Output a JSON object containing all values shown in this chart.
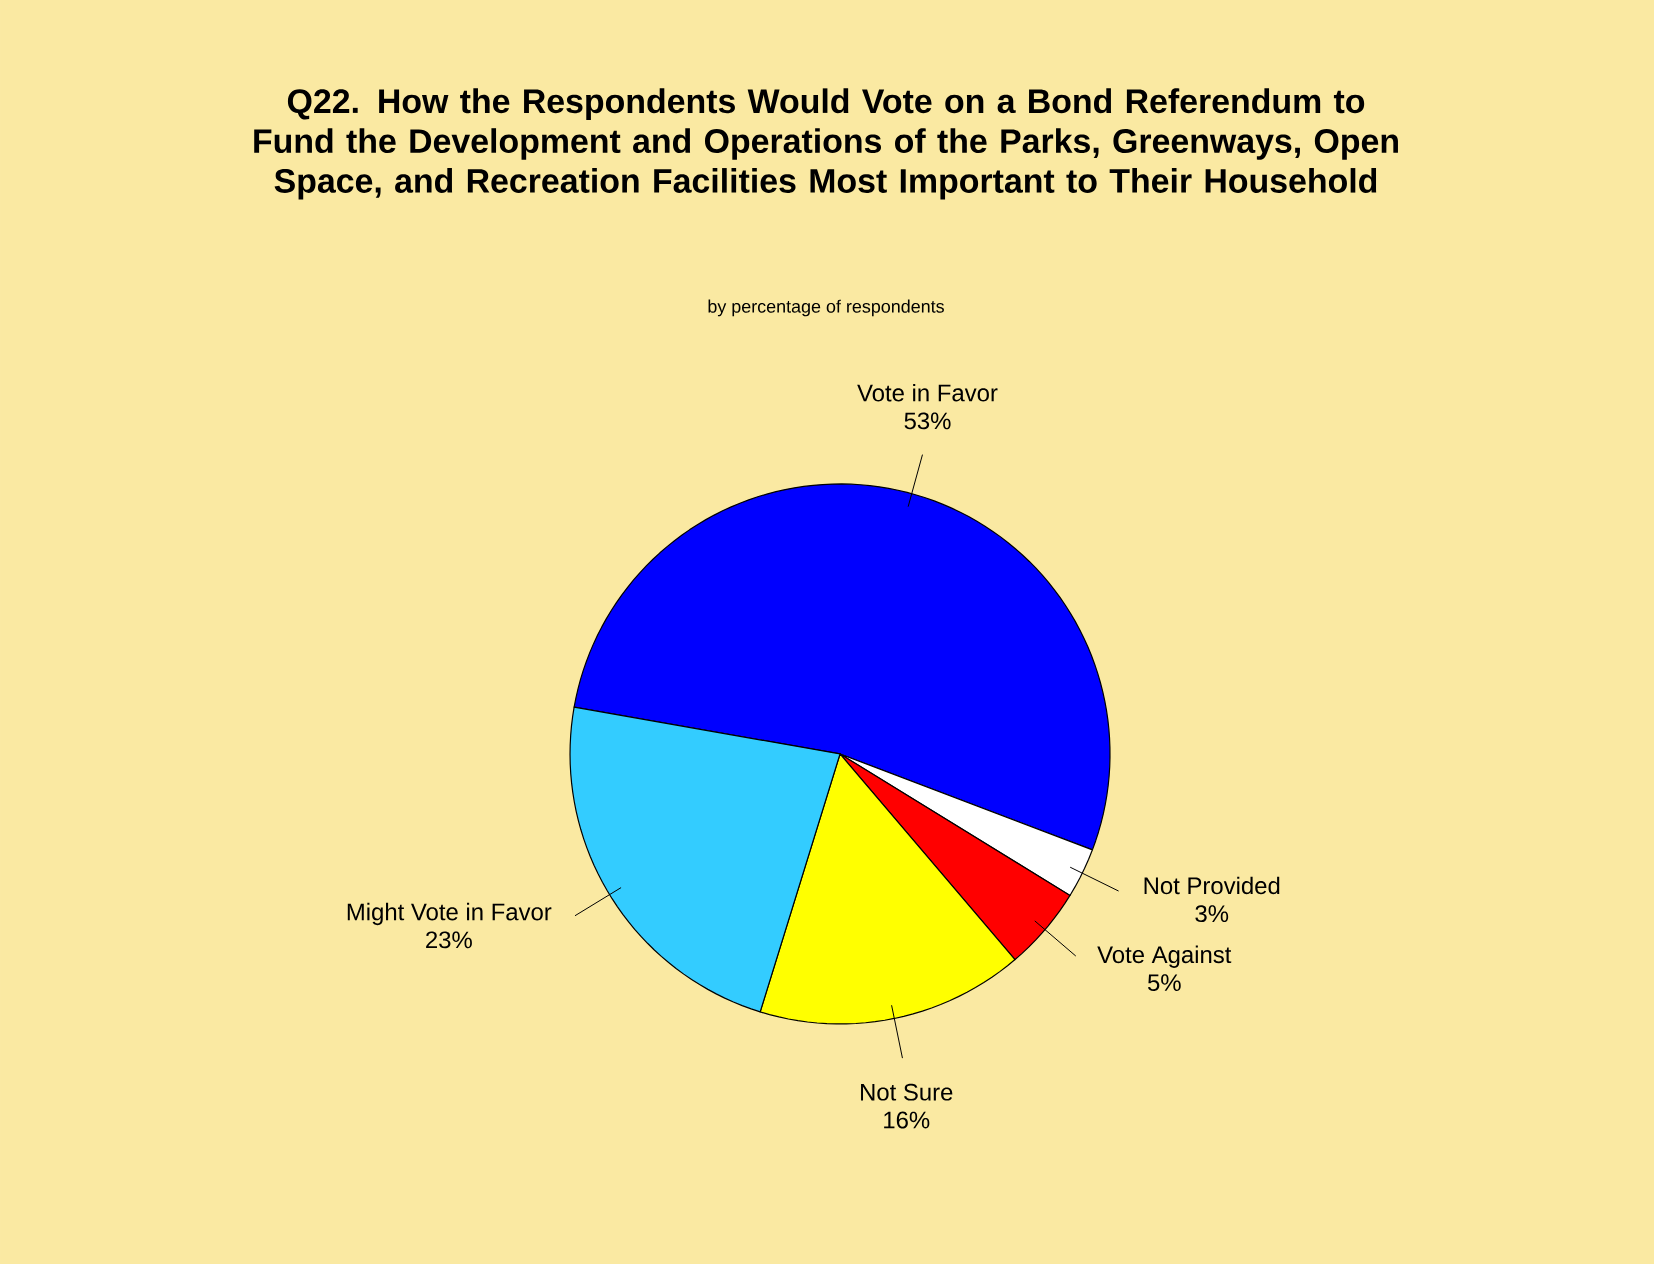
{
  "chart_data": {
    "type": "pie",
    "title": "Q22. How the Respondents Would Vote on a Bond Referendum to Fund the Development and Operations of the Parks, Greenways, Open Space, and Recreation Facilities Most Important to Their Household",
    "subtitle": "by percentage of respondents",
    "categories": [
      "Vote in Favor",
      "Not Provided",
      "Vote Against",
      "Not Sure",
      "Might Vote in Favor"
    ],
    "values": [
      53,
      3,
      5,
      16,
      23
    ],
    "value_labels": [
      "53%",
      "3%",
      "5%",
      "16%",
      "23%"
    ],
    "colors": [
      "#0000ff",
      "#ffffff",
      "#ff0000",
      "#ffff00",
      "#33ccff"
    ]
  }
}
